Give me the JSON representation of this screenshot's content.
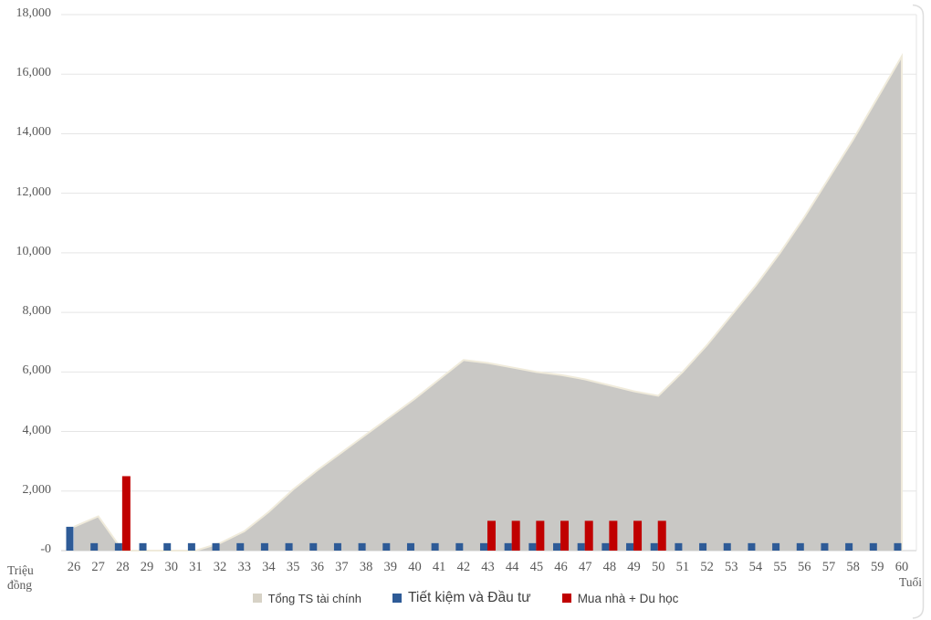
{
  "chart_data": {
    "type": "combo-area-bar",
    "title": "",
    "xlabel": "Tuổi",
    "ylabel": "Triệu đồng",
    "ylim": [
      0,
      18000
    ],
    "ytick_step": 2000,
    "ytick_labels": [
      "-0",
      "2,000",
      "4,000",
      "6,000",
      "8,000",
      "10,000",
      "12,000",
      "14,000",
      "16,000",
      "18,000"
    ],
    "grid": true,
    "legend_position": "bottom",
    "x": [
      26,
      27,
      28,
      29,
      30,
      31,
      32,
      33,
      34,
      35,
      36,
      37,
      38,
      39,
      40,
      41,
      42,
      43,
      44,
      45,
      46,
      47,
      48,
      49,
      50,
      51,
      52,
      53,
      54,
      55,
      56,
      57,
      58,
      59,
      60
    ],
    "series": [
      {
        "name": "Tổng TS tài chính",
        "type": "area",
        "color": "#c9c8c5",
        "edge_color": "#f0ebdb",
        "legend_color": "#d7d2c6",
        "values": [
          800,
          1150,
          0,
          0,
          0,
          0,
          250,
          650,
          1300,
          2050,
          2700,
          3300,
          3900,
          4500,
          5100,
          5750,
          6400,
          6300,
          6150,
          6000,
          5900,
          5750,
          5550,
          5350,
          5200,
          6000,
          6900,
          7900,
          8900,
          10000,
          11200,
          12500,
          13800,
          15200,
          16600
        ]
      },
      {
        "name": "Tiết kiệm và Đầu tư",
        "type": "bar",
        "color": "#2e5b97",
        "legend_color": "#2e5b97",
        "values": [
          800,
          250,
          250,
          250,
          250,
          250,
          250,
          250,
          250,
          250,
          250,
          250,
          250,
          250,
          250,
          250,
          250,
          250,
          250,
          250,
          250,
          250,
          250,
          250,
          250,
          250,
          250,
          250,
          250,
          250,
          250,
          250,
          250,
          250,
          250
        ]
      },
      {
        "name": "Mua nhà + Du học",
        "type": "bar",
        "color": "#c00000",
        "legend_color": "#c00000",
        "values": [
          0,
          0,
          2500,
          0,
          0,
          0,
          0,
          0,
          0,
          0,
          0,
          0,
          0,
          0,
          0,
          0,
          0,
          1000,
          1000,
          1000,
          1000,
          1000,
          1000,
          1000,
          1000,
          0,
          0,
          0,
          0,
          0,
          0,
          0,
          0,
          0,
          0
        ]
      }
    ]
  },
  "labels": {
    "y_unit_line1": "Triệu",
    "y_unit_line2": "đồng",
    "x_unit": "Tuổi"
  }
}
